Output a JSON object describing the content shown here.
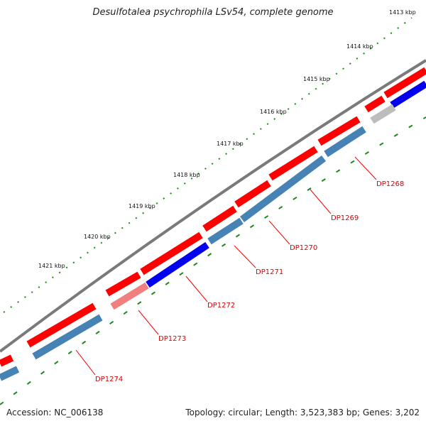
{
  "title": "Desulfotalea psychrophila LSv54, complete genome",
  "footer": {
    "accession": "Accession: NC_006138",
    "summary": "Topology: circular; Length: 3,523,383 bp; Genes: 3,202"
  },
  "ruler": {
    "ticks": [
      "1413 kbp",
      "1414 kbp",
      "1415 kbp",
      "1416 kbp",
      "1417 kbp",
      "1418 kbp",
      "1419 kbp",
      "1420 kbp",
      "1421 kbp"
    ]
  },
  "genes": [
    "DP1268",
    "DP1269",
    "DP1270",
    "DP1271",
    "DP1272",
    "DP1273",
    "DP1274"
  ],
  "colors": {
    "backbone": "#7a7a7a",
    "forward_strand": "#ff0000",
    "gene_blue": "#0000ee",
    "gene_steel": "#4682b4",
    "gene_pink": "#f08080",
    "gene_gray": "#bdbdbd",
    "tick": "#1a8a1a",
    "label": "#dd0000"
  }
}
